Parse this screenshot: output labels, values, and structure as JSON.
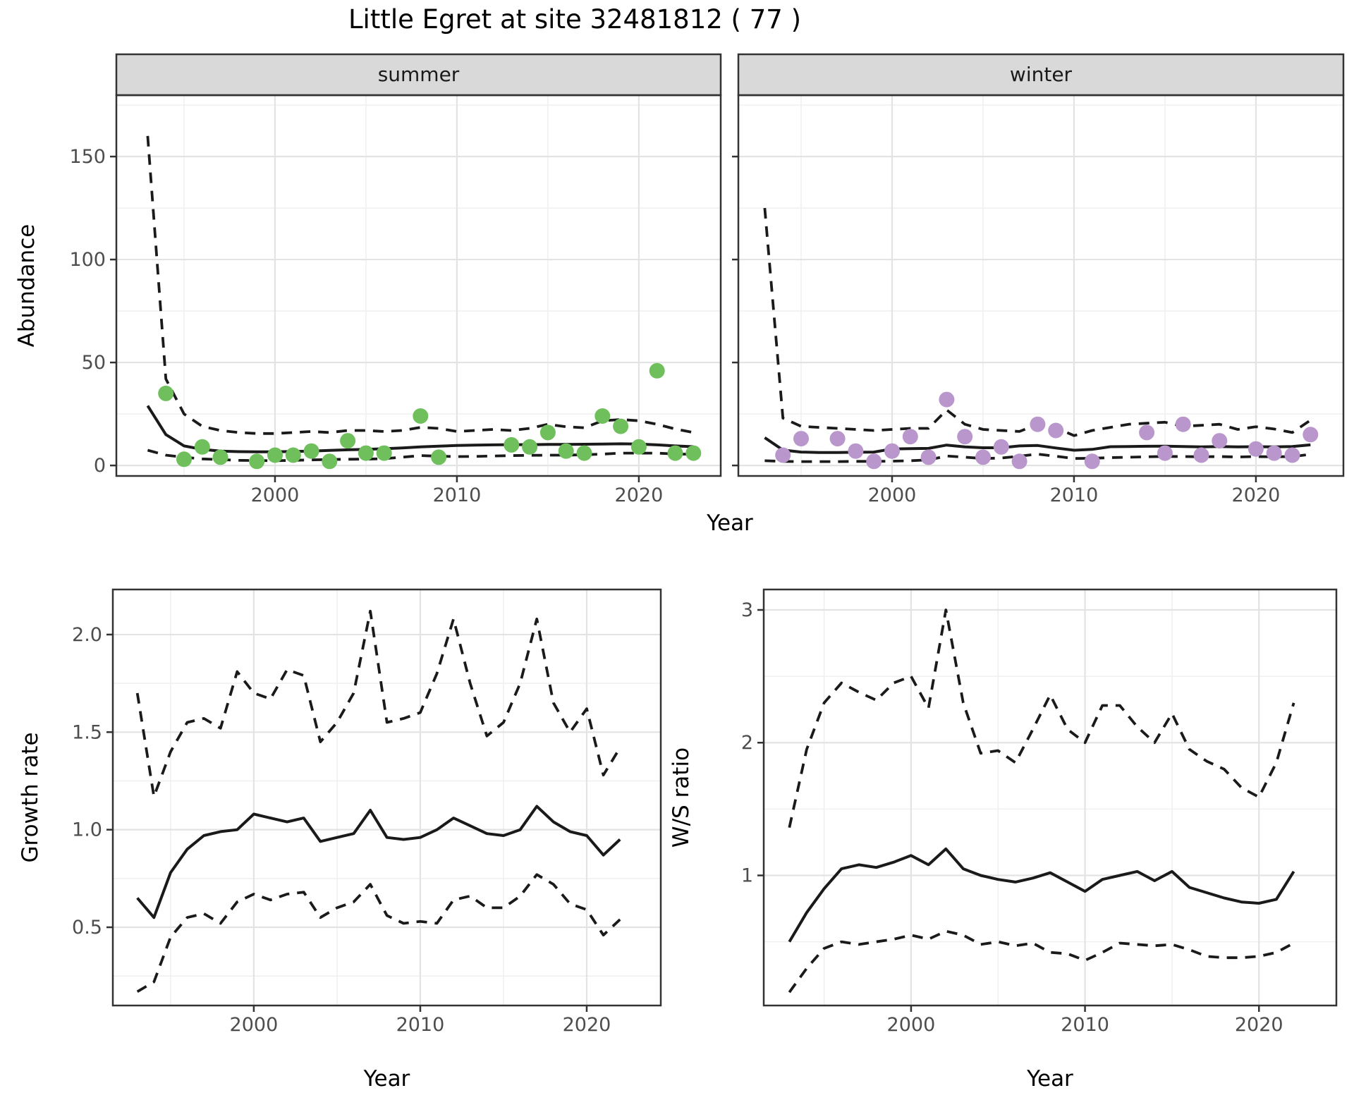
{
  "title": "Little Egret at site 32481812 ( 77 )",
  "axis_titles": {
    "abundance": "Abundance",
    "year": "Year",
    "growth_rate": "Growth rate",
    "ws_ratio": "W/S ratio"
  },
  "facet_labels": {
    "summer": "summer",
    "winter": "winter"
  },
  "colors": {
    "summer_point": "#6fc05c",
    "winter_point": "#b996cc",
    "line": "#1a1a1a",
    "strip_bg": "#d9d9d9",
    "panel_border": "#333333",
    "grid_major": "#e3e3e3",
    "grid_minor": "#f0f0f0",
    "tick_mark": "#333333",
    "tick_text": "#4d4d4d"
  },
  "chart_data": [
    {
      "id": "abundance-summer",
      "type": "line",
      "strip": "summer",
      "xlabel": "Year",
      "ylabel": "Abundance",
      "x_domain": [
        1991.28,
        2024.5
      ],
      "y_domain": [
        -5.1,
        179.8
      ],
      "x_ticks": [
        2000,
        2010,
        2020
      ],
      "x_tick_labels": [
        "2000",
        "2010",
        "2020"
      ],
      "x_minor": [
        1995,
        2005,
        2015
      ],
      "y_ticks": [
        0,
        50,
        100,
        150
      ],
      "y_tick_labels": [
        "0",
        "50",
        "100",
        "150"
      ],
      "y_minor": [
        25,
        75,
        125,
        175
      ],
      "show_y_labels": true,
      "line_years": [
        1993,
        1994,
        1995,
        1996,
        1997,
        1998,
        1999,
        2000,
        2001,
        2002,
        2003,
        2004,
        2005,
        2006,
        2007,
        2008,
        2009,
        2010,
        2011,
        2012,
        2013,
        2014,
        2015,
        2016,
        2017,
        2018,
        2019,
        2020,
        2021,
        2022,
        2023
      ],
      "series": [
        {
          "name": "fit",
          "style": "solid",
          "values": [
            29,
            15,
            9.5,
            7.8,
            7,
            6.7,
            6.6,
            6.6,
            6.8,
            7,
            7.3,
            7.6,
            7.8,
            8.1,
            8.5,
            9,
            9.4,
            9.7,
            9.9,
            10,
            10.1,
            10.1,
            10.2,
            10.2,
            10.3,
            10.4,
            10.5,
            10.4,
            10,
            9.5,
            9.1
          ]
        },
        {
          "name": "upper-ci",
          "style": "dashed",
          "values": [
            160,
            42,
            25,
            19,
            17,
            16,
            15.5,
            15.5,
            16,
            16.5,
            16,
            17,
            17,
            16.5,
            17,
            18.5,
            18,
            16.5,
            17,
            17.5,
            17,
            18,
            20,
            18.8,
            18.3,
            21.7,
            22.3,
            21.7,
            20,
            17.7,
            16
          ]
        },
        {
          "name": "lower-ci",
          "style": "dashed",
          "values": [
            7.4,
            5,
            4,
            3.2,
            2.8,
            2.5,
            2.4,
            2.3,
            2.5,
            2.7,
            2.9,
            3,
            3.1,
            3.3,
            4,
            4.8,
            4.5,
            4.3,
            4.4,
            4.6,
            4.8,
            4.9,
            5,
            5,
            5.2,
            5.5,
            6,
            6,
            6,
            5.6,
            5.4
          ]
        }
      ],
      "points": {
        "color_key": "summer_point",
        "data": [
          [
            1994,
            35
          ],
          [
            1995,
            3
          ],
          [
            1996,
            9
          ],
          [
            1997,
            4
          ],
          [
            1999,
            2
          ],
          [
            2000,
            5
          ],
          [
            2001,
            5
          ],
          [
            2002,
            7
          ],
          [
            2003,
            2
          ],
          [
            2004,
            12
          ],
          [
            2005,
            6
          ],
          [
            2006,
            6
          ],
          [
            2008,
            24
          ],
          [
            2009,
            4
          ],
          [
            2013,
            10
          ],
          [
            2014,
            9
          ],
          [
            2015,
            16
          ],
          [
            2016,
            7
          ],
          [
            2017,
            6
          ],
          [
            2018,
            24
          ],
          [
            2019,
            19
          ],
          [
            2020,
            9
          ],
          [
            2021,
            46
          ],
          [
            2022,
            6
          ],
          [
            2023,
            6
          ]
        ]
      }
    },
    {
      "id": "abundance-winter",
      "type": "line",
      "strip": "winter",
      "xlabel": "Year",
      "ylabel": "Abundance",
      "x_domain": [
        1991.55,
        2024.81
      ],
      "y_domain": [
        -5.1,
        179.8
      ],
      "x_ticks": [
        2000,
        2010,
        2020
      ],
      "x_tick_labels": [
        "2000",
        "2010",
        "2020"
      ],
      "x_minor": [
        1995,
        2005,
        2015
      ],
      "y_ticks": [
        0,
        50,
        100,
        150
      ],
      "y_tick_labels": [
        "0",
        "50",
        "100",
        "150"
      ],
      "y_minor": [
        25,
        75,
        125,
        175
      ],
      "show_y_labels": false,
      "line_years": [
        1993,
        1994,
        1995,
        1996,
        1997,
        1998,
        1999,
        2000,
        2001,
        2002,
        2003,
        2004,
        2005,
        2006,
        2007,
        2008,
        2009,
        2010,
        2011,
        2012,
        2013,
        2014,
        2015,
        2016,
        2017,
        2018,
        2019,
        2020,
        2021,
        2022,
        2023
      ],
      "series": [
        {
          "name": "fit",
          "style": "solid",
          "values": [
            13.5,
            7.5,
            6.5,
            6.3,
            6.3,
            6.4,
            6.5,
            8,
            8.2,
            8.3,
            9.9,
            9,
            8.6,
            8.6,
            9.5,
            9.7,
            8.5,
            7.4,
            7.8,
            9.1,
            9.2,
            9.3,
            9.4,
            9.2,
            9,
            9.2,
            9,
            9.1,
            9,
            9.2,
            10
          ]
        },
        {
          "name": "upper-ci",
          "style": "dashed",
          "values": [
            125,
            23,
            19,
            18.5,
            18,
            17.5,
            17,
            17.5,
            18,
            18,
            27,
            20,
            17.5,
            17,
            16.5,
            20,
            18.3,
            14.5,
            17,
            18.5,
            20,
            20.5,
            21,
            19,
            19.5,
            20,
            17.5,
            18.8,
            17.7,
            16,
            22
          ]
        },
        {
          "name": "lower-ci",
          "style": "dashed",
          "values": [
            2.3,
            2,
            1.9,
            1.9,
            1.9,
            2,
            2,
            2.1,
            2.3,
            2.7,
            4.6,
            4,
            3.4,
            3.6,
            4.5,
            5.5,
            4.5,
            3.4,
            3.5,
            3.8,
            4,
            4.2,
            4.4,
            4.3,
            4.2,
            4.3,
            4.1,
            4.3,
            4.2,
            4.3,
            5.4
          ]
        }
      ],
      "points": {
        "color_key": "winter_point",
        "data": [
          [
            1994,
            5
          ],
          [
            1995,
            13
          ],
          [
            1997,
            13
          ],
          [
            1998,
            7
          ],
          [
            1999,
            2
          ],
          [
            2000,
            7
          ],
          [
            2001,
            14
          ],
          [
            2002,
            4
          ],
          [
            2003,
            32
          ],
          [
            2004,
            14
          ],
          [
            2005,
            4
          ],
          [
            2006,
            9
          ],
          [
            2007,
            2
          ],
          [
            2008,
            20
          ],
          [
            2009,
            17
          ],
          [
            2011,
            2
          ],
          [
            2014,
            16
          ],
          [
            2015,
            6
          ],
          [
            2016,
            20
          ],
          [
            2017,
            5
          ],
          [
            2018,
            12
          ],
          [
            2020,
            8
          ],
          [
            2021,
            6
          ],
          [
            2022,
            5
          ],
          [
            2023,
            15
          ]
        ]
      }
    },
    {
      "id": "growth-rate",
      "type": "line",
      "strip": null,
      "xlabel": "Year",
      "ylabel": "Growth rate",
      "x_domain": [
        1991.53,
        2024.45
      ],
      "y_domain": [
        0.099,
        2.231
      ],
      "x_ticks": [
        2000,
        2010,
        2020
      ],
      "x_tick_labels": [
        "2000",
        "2010",
        "2020"
      ],
      "x_minor": [
        1995,
        2005,
        2015
      ],
      "y_ticks": [
        0.5,
        1.0,
        1.5,
        2.0
      ],
      "y_tick_labels": [
        "0.5",
        "1.0",
        "1.5",
        "2.0"
      ],
      "y_minor": [
        0.25,
        0.75,
        1.25,
        1.75
      ],
      "show_y_labels": true,
      "line_years": [
        1993,
        1994,
        1995,
        1996,
        1997,
        1998,
        1999,
        2000,
        2001,
        2002,
        2003,
        2004,
        2005,
        2006,
        2007,
        2008,
        2009,
        2010,
        2011,
        2012,
        2013,
        2014,
        2015,
        2016,
        2017,
        2018,
        2019,
        2020,
        2021,
        2022
      ],
      "series": [
        {
          "name": "fit",
          "style": "solid",
          "values": [
            0.65,
            0.55,
            0.78,
            0.9,
            0.97,
            0.99,
            1.0,
            1.08,
            1.06,
            1.04,
            1.06,
            0.94,
            0.96,
            0.98,
            1.1,
            0.96,
            0.95,
            0.96,
            1.0,
            1.06,
            1.02,
            0.98,
            0.97,
            1.0,
            1.12,
            1.04,
            0.99,
            0.97,
            0.87,
            0.95
          ]
        },
        {
          "name": "upper-ci",
          "style": "dashed",
          "values": [
            1.7,
            1.17,
            1.4,
            1.55,
            1.57,
            1.52,
            1.81,
            1.7,
            1.67,
            1.82,
            1.79,
            1.45,
            1.55,
            1.7,
            2.12,
            1.55,
            1.57,
            1.6,
            1.8,
            2.08,
            1.75,
            1.48,
            1.55,
            1.75,
            2.08,
            1.65,
            1.5,
            1.62,
            1.28,
            1.42
          ]
        },
        {
          "name": "lower-ci",
          "style": "dashed",
          "values": [
            0.17,
            0.22,
            0.45,
            0.55,
            0.57,
            0.52,
            0.63,
            0.67,
            0.64,
            0.67,
            0.68,
            0.55,
            0.6,
            0.63,
            0.72,
            0.56,
            0.52,
            0.53,
            0.52,
            0.64,
            0.66,
            0.6,
            0.6,
            0.66,
            0.77,
            0.72,
            0.62,
            0.59,
            0.46,
            0.54
          ]
        }
      ],
      "points": null
    },
    {
      "id": "ws-ratio",
      "type": "line",
      "strip": null,
      "xlabel": "Year",
      "ylabel": "W/S ratio",
      "x_domain": [
        1991.53,
        2024.45
      ],
      "y_domain": [
        0.02,
        3.154
      ],
      "x_ticks": [
        2000,
        2010,
        2020
      ],
      "x_tick_labels": [
        "2000",
        "2010",
        "2020"
      ],
      "x_minor": [
        1995,
        2005,
        2015
      ],
      "y_ticks": [
        1,
        2,
        3
      ],
      "y_tick_labels": [
        "1",
        "2",
        "3"
      ],
      "y_minor": [
        0.5,
        1.5,
        2.5
      ],
      "show_y_labels": true,
      "line_years": [
        1993,
        1994,
        1995,
        1996,
        1997,
        1998,
        1999,
        2000,
        2001,
        2002,
        2003,
        2004,
        2005,
        2006,
        2007,
        2008,
        2009,
        2010,
        2011,
        2012,
        2013,
        2014,
        2015,
        2016,
        2017,
        2018,
        2019,
        2020,
        2021,
        2022
      ],
      "series": [
        {
          "name": "fit",
          "style": "solid",
          "values": [
            0.5,
            0.72,
            0.9,
            1.05,
            1.08,
            1.06,
            1.1,
            1.15,
            1.08,
            1.2,
            1.05,
            1.0,
            0.97,
            0.95,
            0.98,
            1.02,
            0.95,
            0.88,
            0.97,
            1.0,
            1.03,
            0.96,
            1.03,
            0.91,
            0.87,
            0.83,
            0.8,
            0.79,
            0.82,
            1.03
          ]
        },
        {
          "name": "upper-ci",
          "style": "dashed",
          "values": [
            1.36,
            1.95,
            2.3,
            2.45,
            2.38,
            2.32,
            2.45,
            2.5,
            2.26,
            3.0,
            2.3,
            1.92,
            1.94,
            1.85,
            2.1,
            2.36,
            2.1,
            2.0,
            2.28,
            2.28,
            2.12,
            2.0,
            2.22,
            1.95,
            1.86,
            1.8,
            1.66,
            1.59,
            1.85,
            2.3
          ]
        },
        {
          "name": "lower-ci",
          "style": "dashed",
          "values": [
            0.12,
            0.3,
            0.45,
            0.5,
            0.48,
            0.5,
            0.52,
            0.55,
            0.52,
            0.58,
            0.55,
            0.48,
            0.5,
            0.47,
            0.49,
            0.42,
            0.41,
            0.36,
            0.42,
            0.49,
            0.48,
            0.47,
            0.48,
            0.44,
            0.39,
            0.38,
            0.38,
            0.39,
            0.42,
            0.49
          ]
        }
      ],
      "points": null
    }
  ]
}
